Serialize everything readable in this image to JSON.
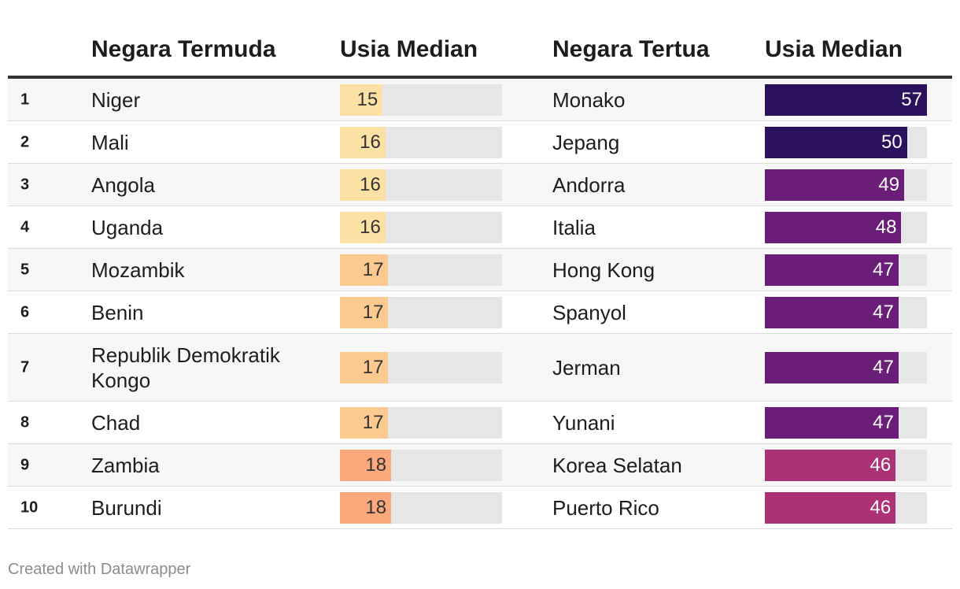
{
  "headers": {
    "young_country": "Negara Termuda",
    "young_age": "Usia Median",
    "old_country": "Negara Tertua",
    "old_age": "Usia Median"
  },
  "chart_data": {
    "type": "table",
    "bar_max": 57,
    "rows": [
      {
        "rank": "1",
        "young": "Niger",
        "young_age": 15,
        "young_color": "#fce1a4",
        "old": "Monako",
        "old_age": 57,
        "old_color": "#2c115f"
      },
      {
        "rank": "2",
        "young": "Mali",
        "young_age": 16,
        "young_color": "#fce1a4",
        "old": "Jepang",
        "old_age": 50,
        "old_color": "#2c115f"
      },
      {
        "rank": "3",
        "young": "Angola",
        "young_age": 16,
        "young_color": "#fce1a4",
        "old": "Andorra",
        "old_age": 49,
        "old_color": "#6b1e78"
      },
      {
        "rank": "4",
        "young": "Uganda",
        "young_age": 16,
        "young_color": "#fce1a4",
        "old": "Italia",
        "old_age": 48,
        "old_color": "#6b1e78"
      },
      {
        "rank": "5",
        "young": "Mozambik",
        "young_age": 17,
        "young_color": "#fcc98f",
        "old": "Hong Kong",
        "old_age": 47,
        "old_color": "#6b1e78"
      },
      {
        "rank": "6",
        "young": "Benin",
        "young_age": 17,
        "young_color": "#fcc98f",
        "old": "Spanyol",
        "old_age": 47,
        "old_color": "#6b1e78"
      },
      {
        "rank": "7",
        "young": "Republik Demokratik Kongo",
        "young_age": 17,
        "young_color": "#fcc98f",
        "old": "Jerman",
        "old_age": 47,
        "old_color": "#6b1e78"
      },
      {
        "rank": "8",
        "young": "Chad",
        "young_age": 17,
        "young_color": "#fcc98f",
        "old": "Yunani",
        "old_age": 47,
        "old_color": "#6b1e78"
      },
      {
        "rank": "9",
        "young": "Zambia",
        "young_age": 18,
        "young_color": "#faa87c",
        "old": "Korea Selatan",
        "old_age": 46,
        "old_color": "#ad3175"
      },
      {
        "rank": "10",
        "young": "Burundi",
        "young_age": 18,
        "young_color": "#faa87c",
        "old": "Puerto Rico",
        "old_age": 46,
        "old_color": "#ad3175"
      }
    ]
  },
  "footer": "Created with Datawrapper"
}
